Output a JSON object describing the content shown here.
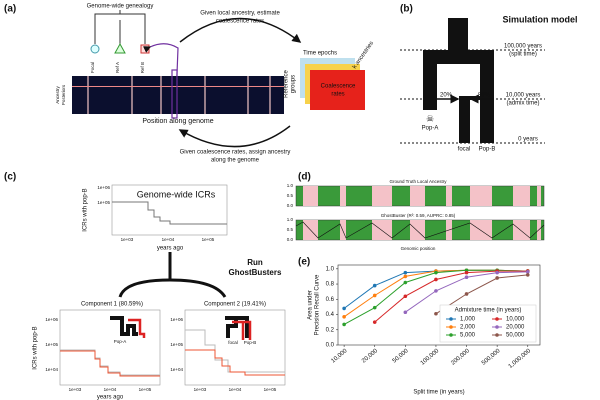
{
  "panel_a": {
    "label": "(a)",
    "genealogy": "Genome-wide genealogy",
    "leaves": [
      "Focal",
      "Ref A",
      "Ref B"
    ],
    "posterior_label": [
      "Ancestry",
      "Posteriors"
    ],
    "position": "Position along genome",
    "top_arrow": [
      "Given local ancestry, estimate",
      "coalescence rates"
    ],
    "bottom_arrow": [
      "Given coalescence rates, assign ancestry",
      "along the genome"
    ],
    "epochs": "Time epochs",
    "k": "k ancestries",
    "ref_groups": [
      "Reference",
      "groups"
    ],
    "coal": [
      "Coalescence",
      "rates"
    ]
  },
  "panel_b": {
    "label": "(b)",
    "title": "Simulation model",
    "split": [
      "100,000 years",
      "(split time)"
    ],
    "admix": [
      "10,000 years",
      "(admix time)"
    ],
    "zero": "0 years",
    "left_pct": "20%",
    "right_pct": "80%",
    "pop_a": "Pop-A",
    "focal": "focal",
    "pop_b": "Pop-B"
  },
  "panel_c": {
    "label": "(c)",
    "title": "Genome-wide ICRs",
    "ylabel": "ICRs with pop-B",
    "xlabel": "years ago",
    "yticks": [
      "1e+06",
      "1e+05"
    ],
    "xticks": [
      "1e+03",
      "1e+04",
      "1e+05"
    ],
    "run": [
      "Run",
      "GhostBusters"
    ],
    "components": [
      "Component 1 (80.59%)",
      "Component 2 (19.41%)"
    ],
    "sub_yticks": [
      "1e+06",
      "1e+05",
      "1e+04"
    ],
    "inset_labels": [
      "Pop-A",
      "focal",
      "Pop-B"
    ]
  },
  "panel_d": {
    "label": "(d)",
    "track1": "Ground Truth Local Ancestry",
    "track2": "GhostBuster (R²: 0.59, AUPRC: 0.85)",
    "yticks": [
      "1.0",
      "0.5",
      "0.0"
    ],
    "xlabel": "Genomic position"
  },
  "chart_data": {
    "type": "line",
    "label": "(e)",
    "xlabel": "Split time (in years)",
    "ylabel": [
      "Area under",
      "Precision Recall Curve"
    ],
    "categories": [
      "10,000",
      "20,000",
      "50,000",
      "100,000",
      "200,000",
      "500,000",
      "1,000,000"
    ],
    "ylim": [
      0.0,
      1.05
    ],
    "yticks": [
      {
        "value": 0,
        "label": "0.0"
      },
      0.2,
      0.4,
      0.6,
      0.8,
      {
        "value": 1,
        "label": "1.0"
      }
    ],
    "grid": false,
    "legend_title": "Admixture time (in years)",
    "legend": "lower right",
    "series": [
      {
        "name": "1,000",
        "color": "#1f77b4",
        "values": [
          0.48,
          0.78,
          0.95,
          0.97,
          0.98,
          0.98,
          0.97
        ]
      },
      {
        "name": "2,000",
        "color": "#ff7f0e",
        "values": [
          0.37,
          0.65,
          0.9,
          0.97,
          0.98,
          0.98,
          0.97
        ]
      },
      {
        "name": "5,000",
        "color": "#2ca02c",
        "values": [
          0.27,
          0.49,
          0.82,
          0.95,
          0.98,
          0.98,
          0.97
        ]
      },
      {
        "name": "10,000",
        "color": "#d62728",
        "values": [
          null,
          0.3,
          0.64,
          0.86,
          0.95,
          0.97,
          0.97
        ]
      },
      {
        "name": "20,000",
        "color": "#9467bd",
        "values": [
          null,
          null,
          0.43,
          0.71,
          0.89,
          0.95,
          0.96
        ]
      },
      {
        "name": "50,000",
        "color": "#8c564b",
        "values": [
          null,
          null,
          null,
          0.41,
          0.67,
          0.88,
          0.92
        ]
      }
    ]
  }
}
